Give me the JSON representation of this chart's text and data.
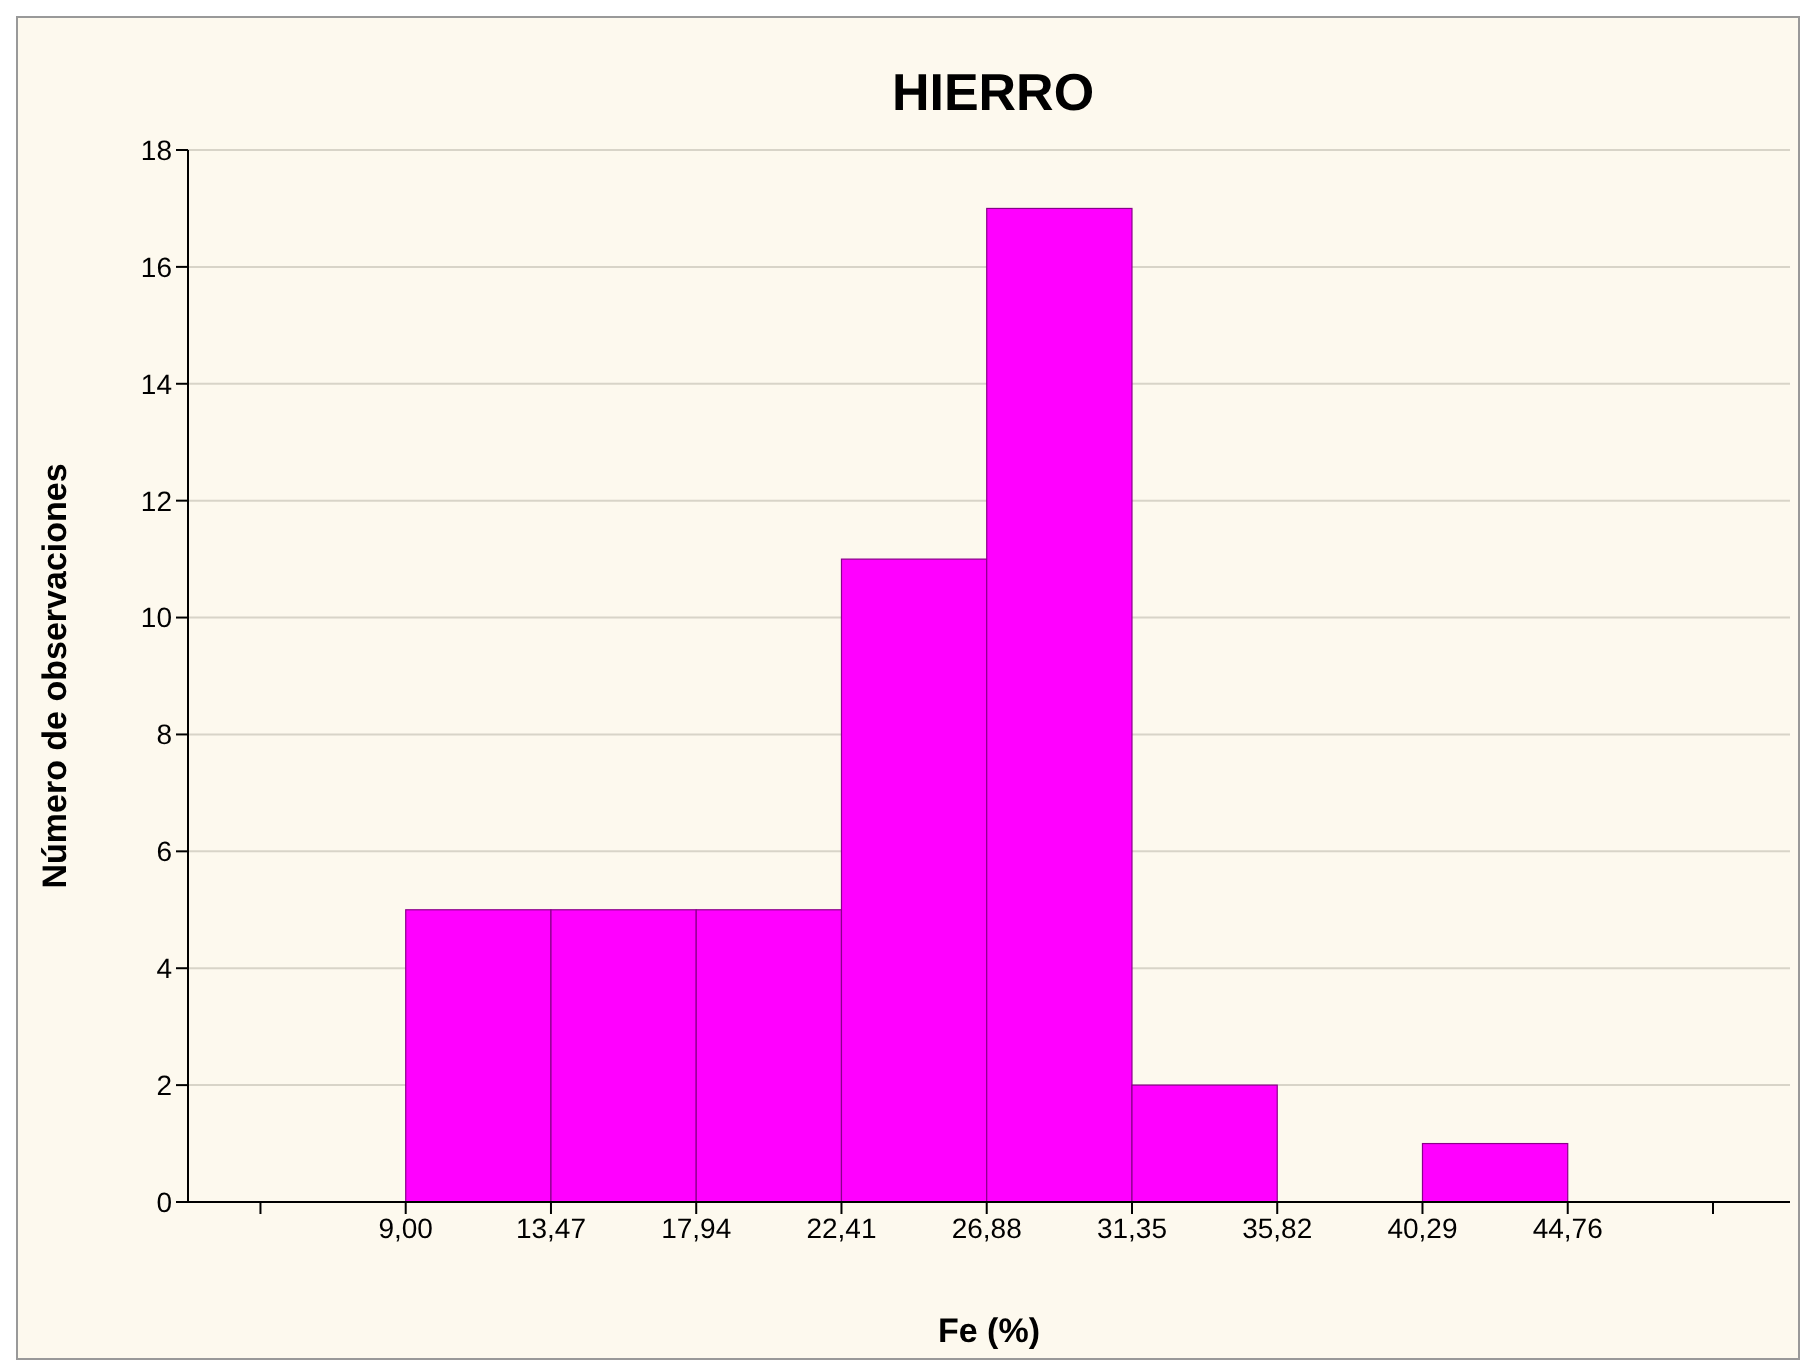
{
  "chart_data": {
    "type": "histogram",
    "title": "HIERRO",
    "xlabel": "Fe (%)",
    "ylabel": "Número de observaciones",
    "bins": [
      4.53,
      9.0,
      13.47,
      17.94,
      22.41,
      26.88,
      31.35,
      35.82,
      40.29,
      44.76,
      49.23
    ],
    "values": [
      0,
      5,
      5,
      5,
      11,
      17,
      2,
      0,
      1,
      0
    ],
    "color": "#ff00ff",
    "xlim": [
      2.3,
      51.6
    ],
    "xticks": [
      {
        "value": 4.53,
        "label": null
      },
      {
        "value": 9.0,
        "label": "9,00"
      },
      {
        "value": 13.47,
        "label": "13,47"
      },
      {
        "value": 17.94,
        "label": "17,94"
      },
      {
        "value": 22.41,
        "label": "22,41"
      },
      {
        "value": 26.88,
        "label": "26,88"
      },
      {
        "value": 31.35,
        "label": "31,35"
      },
      {
        "value": 35.82,
        "label": "35,82"
      },
      {
        "value": 40.29,
        "label": "40,29"
      },
      {
        "value": 44.76,
        "label": "44,76"
      },
      {
        "value": 49.23,
        "label": null
      }
    ],
    "ylim": [
      0,
      18
    ],
    "yticks": [
      0,
      2,
      4,
      6,
      8,
      10,
      12,
      14,
      16,
      18
    ],
    "grid": "y"
  }
}
